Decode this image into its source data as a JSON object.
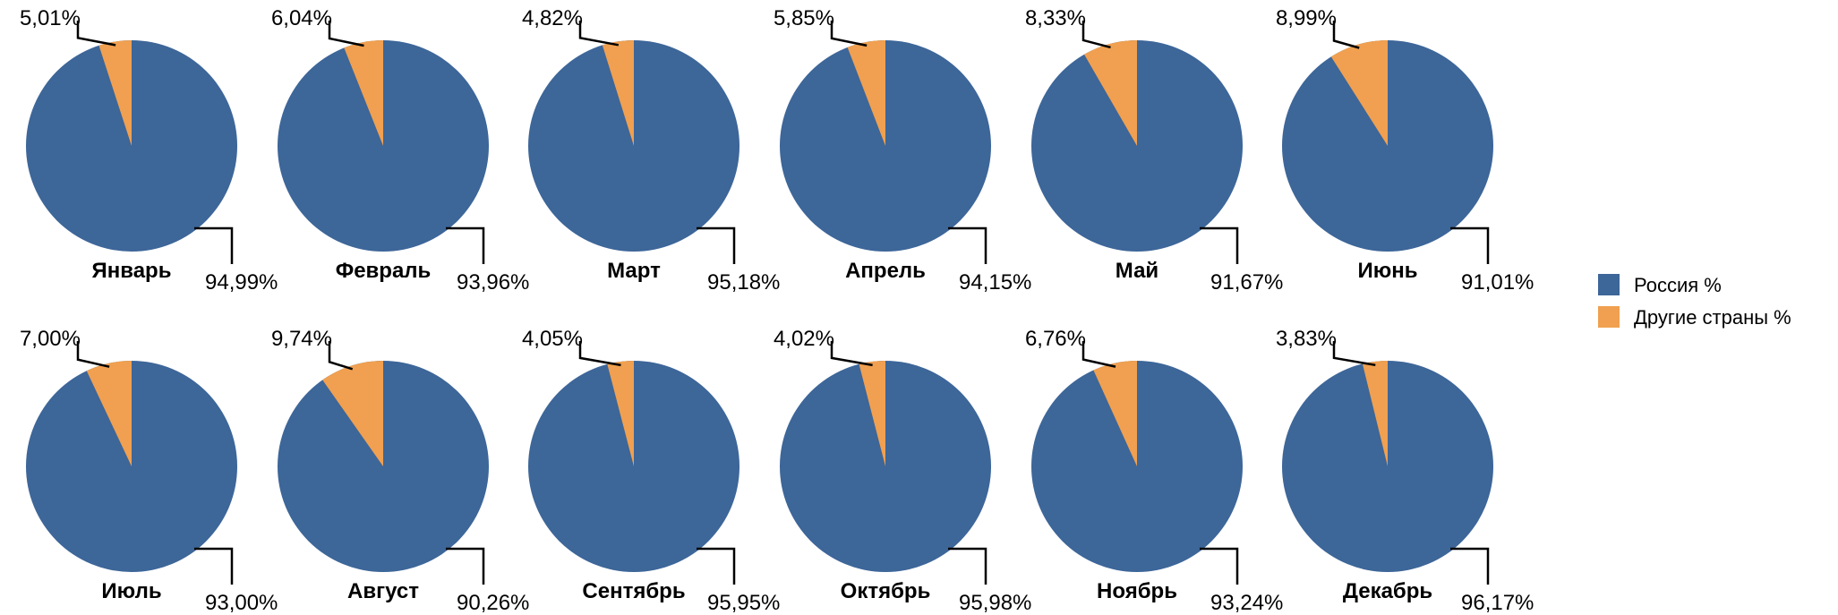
{
  "chart_data": {
    "type": "pie",
    "series_names": [
      "Россия %",
      "Другие страны %"
    ],
    "colors": {
      "russia": "#3d6699",
      "other": "#f0a050"
    },
    "legend_position": "right",
    "charts": [
      {
        "month": "Январь",
        "russia": 94.99,
        "other": 5.01,
        "russia_label": "94,99%",
        "other_label": "5,01%"
      },
      {
        "month": "Февраль",
        "russia": 93.96,
        "other": 6.04,
        "russia_label": "93,96%",
        "other_label": "6,04%"
      },
      {
        "month": "Март",
        "russia": 95.18,
        "other": 4.82,
        "russia_label": "95,18%",
        "other_label": "4,82%"
      },
      {
        "month": "Апрель",
        "russia": 94.15,
        "other": 5.85,
        "russia_label": "94,15%",
        "other_label": "5,85%"
      },
      {
        "month": "Май",
        "russia": 91.67,
        "other": 8.33,
        "russia_label": "91,67%",
        "other_label": "8,33%"
      },
      {
        "month": "Июнь",
        "russia": 91.01,
        "other": 8.99,
        "russia_label": "91,01%",
        "other_label": "8,99%"
      },
      {
        "month": "Июль",
        "russia": 93.0,
        "other": 7.0,
        "russia_label": "93,00%",
        "other_label": "7,00%"
      },
      {
        "month": "Август",
        "russia": 90.26,
        "other": 9.74,
        "russia_label": "90,26%",
        "other_label": "9,74%"
      },
      {
        "month": "Сентябрь",
        "russia": 95.95,
        "other": 4.05,
        "russia_label": "95,95%",
        "other_label": "4,05%"
      },
      {
        "month": "Октябрь",
        "russia": 95.98,
        "other": 4.02,
        "russia_label": "95,98%",
        "other_label": "4,02%"
      },
      {
        "month": "Ноябрь",
        "russia": 93.24,
        "other": 6.76,
        "russia_label": "93,24%",
        "other_label": "6,76%"
      },
      {
        "month": "Декабрь",
        "russia": 96.17,
        "other": 3.83,
        "russia_label": "96,17%",
        "other_label": "3,83%"
      }
    ]
  }
}
